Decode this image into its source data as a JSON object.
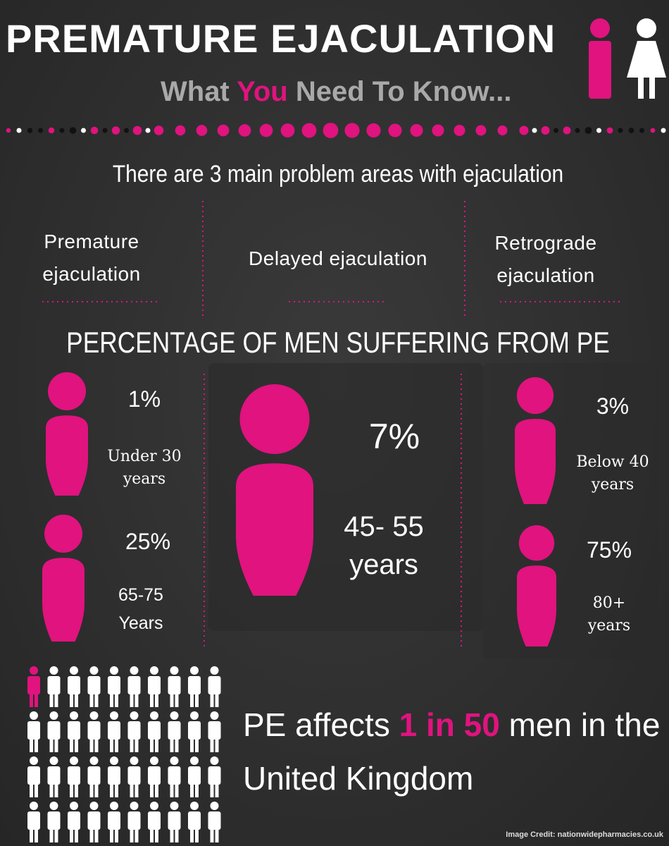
{
  "header": {
    "title": "PREMATURE EJACULATION",
    "subtitle": {
      "before": "What",
      "highlight": "You",
      "after": "Need To Know..."
    }
  },
  "intro": "There are 3 main problem areas with ejaculation",
  "problem_areas": [
    "Premature ejaculation",
    "Delayed ejaculation",
    "Retrograde ejaculation"
  ],
  "section_title": "PERCENTAGE OF MEN SUFFERING FROM PE",
  "stats": [
    {
      "percent": "1%",
      "group": "Under 30 years"
    },
    {
      "percent": "25%",
      "group": "65-75 Years"
    },
    {
      "percent": "7%",
      "group": "45- 55 years"
    },
    {
      "percent": "3%",
      "group": "Below 40 years"
    },
    {
      "percent": "75%",
      "group": "80+ years"
    }
  ],
  "statement": {
    "before": "PE affects",
    "first": "1",
    "middle": "in",
    "second": "50",
    "after": "men in the United Kingdom"
  },
  "credit": "Image Credit: nationwidepharmacies.co.uk"
}
